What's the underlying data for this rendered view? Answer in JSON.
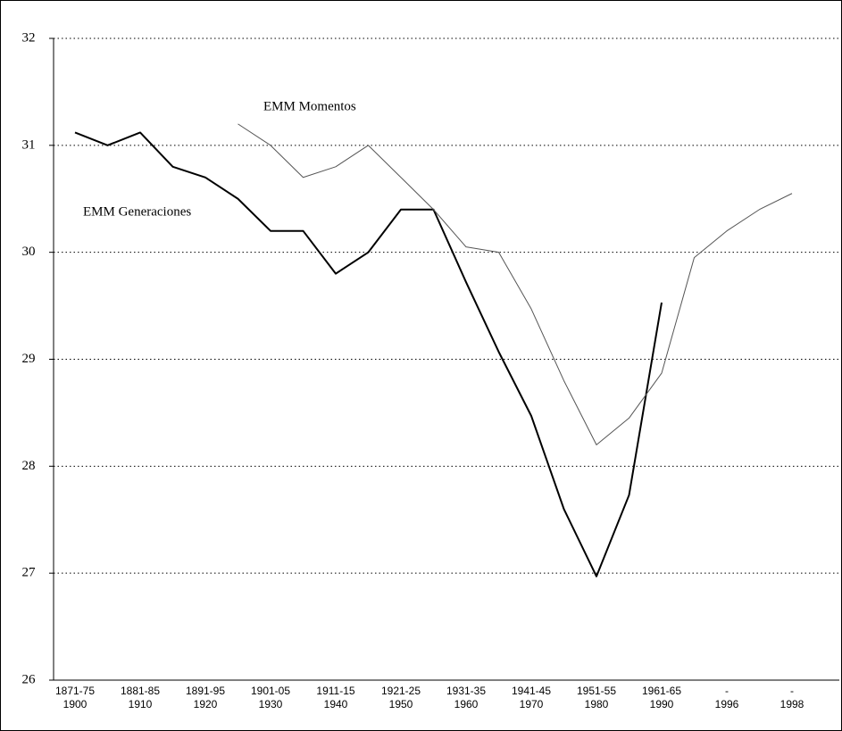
{
  "chart_data": {
    "type": "line",
    "categories": [
      "1871-75",
      null,
      "1881-85",
      null,
      "1891-95",
      null,
      "1901-05",
      null,
      "1911-15",
      null,
      "1921-25",
      null,
      "1931-35",
      null,
      "1941-45",
      null,
      "1951-55",
      null,
      "1961-65",
      null,
      "-",
      null,
      "-"
    ],
    "category_years": [
      "1900",
      null,
      "1910",
      null,
      "1920",
      null,
      "1930",
      null,
      "1940",
      null,
      "1950",
      null,
      "1960",
      null,
      "1970",
      null,
      "1980",
      null,
      "1990",
      null,
      "1996",
      null,
      "1998"
    ],
    "series": [
      {
        "name": "EMM Generaciones",
        "color": "#000000",
        "width": 2,
        "values": [
          31.12,
          31.0,
          31.12,
          30.8,
          30.7,
          30.5,
          30.2,
          30.2,
          29.8,
          30.0,
          30.4,
          30.4,
          29.72,
          29.07,
          28.47,
          27.6,
          26.97,
          27.73,
          29.53,
          null,
          null,
          null,
          null
        ]
      },
      {
        "name": "EMM Momentos",
        "color": "#555555",
        "width": 1,
        "values": [
          null,
          null,
          null,
          null,
          null,
          31.2,
          31.0,
          30.7,
          30.8,
          31.0,
          30.7,
          30.4,
          30.05,
          30.0,
          29.47,
          28.8,
          28.2,
          28.45,
          28.87,
          29.95,
          30.2,
          30.4,
          30.55
        ]
      }
    ],
    "ylim": [
      26,
      32
    ],
    "yticks": [
      26,
      27,
      28,
      29,
      30,
      31,
      32
    ],
    "grid": true
  }
}
